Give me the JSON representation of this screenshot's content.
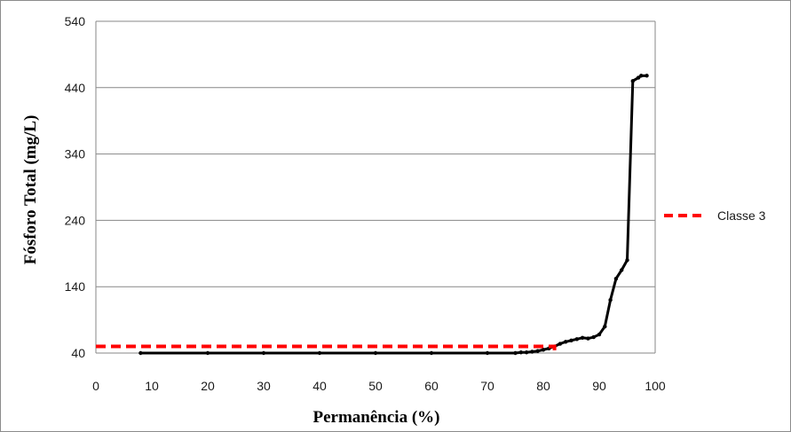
{
  "chart_data": {
    "type": "line",
    "xlabel": "Permanência (%)",
    "ylabel": "Fósforo Total (mg/L)",
    "xlim": [
      0,
      100
    ],
    "ylim": [
      40,
      540
    ],
    "xticks": [
      0,
      10,
      20,
      30,
      40,
      50,
      60,
      70,
      80,
      90,
      100
    ],
    "yticks": [
      40,
      140,
      240,
      340,
      440,
      540
    ],
    "grid": "horizontal",
    "legend_position": "right",
    "series": [
      {
        "color": "#000000",
        "style": "solid-with-markers",
        "x": [
          8,
          20,
          30,
          40,
          50,
          60,
          70,
          75,
          76,
          77,
          78,
          79,
          80,
          81,
          82,
          83,
          84,
          85,
          86,
          87,
          88,
          89,
          90,
          91,
          92,
          93,
          94,
          95,
          96,
          97,
          97.5,
          98.5
        ],
        "y": [
          40,
          40,
          40,
          40,
          40,
          40,
          40,
          40,
          41,
          41,
          42,
          43,
          45,
          47,
          50,
          54,
          57,
          59,
          61,
          63,
          62,
          64,
          68,
          80,
          120,
          152,
          165,
          180,
          450,
          455,
          458,
          458
        ]
      },
      {
        "name": "Classe 3",
        "color": "#ff0000",
        "style": "dashed",
        "x": [
          0,
          82,
          82
        ],
        "y": [
          50,
          50,
          40
        ]
      }
    ]
  }
}
